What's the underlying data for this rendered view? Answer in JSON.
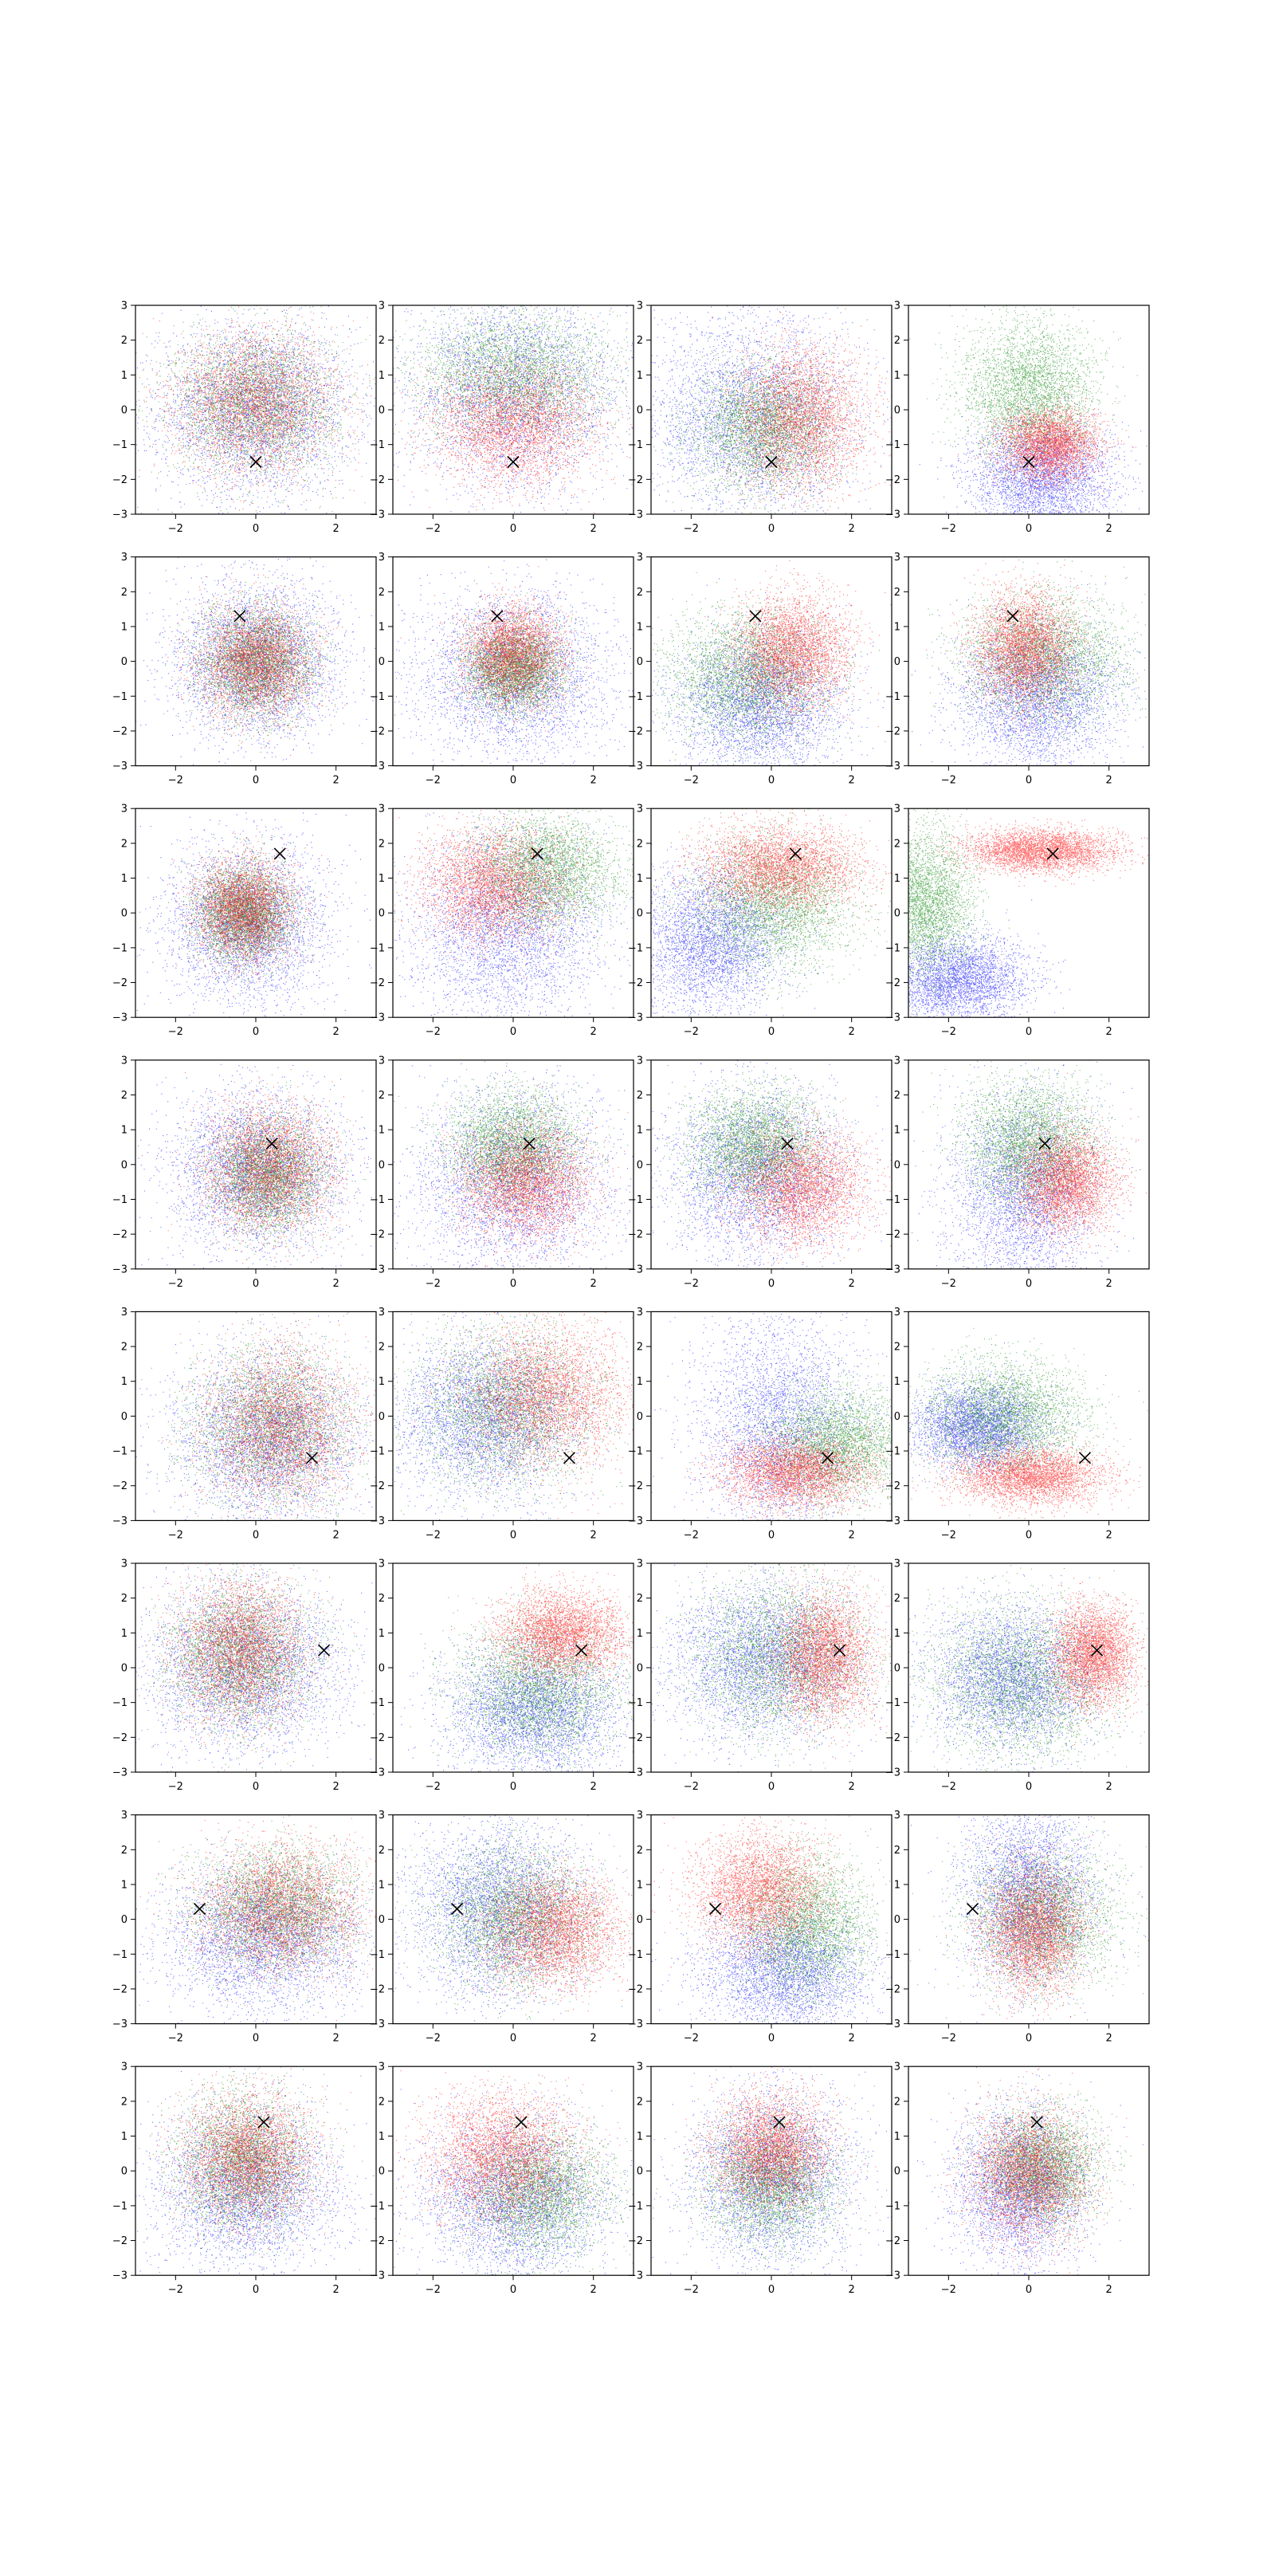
{
  "figure": {
    "rows": 8,
    "cols": 4,
    "colors": {
      "red": "#ff0000",
      "green": "#008000",
      "blue": "#0000ff",
      "marker": "#000000"
    }
  },
  "chart_data": {
    "type": "scatter",
    "xlim": [
      -3,
      3
    ],
    "ylim": [
      -3,
      3
    ],
    "xticks": [
      "−2",
      "0",
      "2"
    ],
    "yticks": [
      "−3",
      "−2",
      "−1",
      "0",
      "1",
      "2",
      "3"
    ],
    "grid": false,
    "series_colors": [
      "blue",
      "green",
      "red"
    ],
    "rows": [
      {
        "marker": [
          0.0,
          -1.5
        ],
        "panels": [
          {
            "blue": [
              0,
              0,
              1.2,
              1.2
            ],
            "green": [
              0,
              0.2,
              1.0,
              1.0
            ],
            "red": [
              0,
              0.2,
              1.0,
              1.0
            ]
          },
          {
            "blue": [
              0,
              0.5,
              1.3,
              1.4
            ],
            "green": [
              0,
              1.0,
              1.2,
              0.9
            ],
            "red": [
              0,
              -0.4,
              1.0,
              0.9
            ]
          },
          {
            "blue": [
              -0.5,
              -0.2,
              1.3,
              1.4
            ],
            "green": [
              -0.2,
              -0.5,
              0.9,
              0.9
            ],
            "red": [
              0.7,
              -0.2,
              0.8,
              1.0
            ]
          },
          {
            "blue": [
              0.3,
              -2.0,
              0.9,
              0.8
            ],
            "green": [
              0.0,
              0.5,
              0.8,
              1.0
            ],
            "red": [
              0.5,
              -1.0,
              0.6,
              0.5
            ]
          }
        ]
      },
      {
        "marker": [
          -0.4,
          1.3
        ],
        "panels": [
          {
            "blue": [
              0,
              0,
              1.0,
              1.1
            ],
            "green": [
              0,
              0,
              0.7,
              0.8
            ],
            "red": [
              0,
              0,
              0.7,
              0.8
            ]
          },
          {
            "blue": [
              0,
              -0.4,
              1.2,
              1.2
            ],
            "green": [
              0,
              -0.2,
              0.6,
              0.6
            ],
            "red": [
              0,
              0.2,
              0.6,
              0.7
            ]
          },
          {
            "blue": [
              -0.3,
              -1.2,
              1.0,
              1.0
            ],
            "green": [
              -0.6,
              -0.4,
              1.0,
              0.9
            ],
            "red": [
              0.5,
              0.3,
              0.7,
              0.8
            ]
          },
          {
            "blue": [
              0.2,
              -1.0,
              1.0,
              1.0
            ],
            "green": [
              0.4,
              0.1,
              1.0,
              0.9
            ],
            "red": [
              -0.1,
              0.4,
              0.6,
              0.8
            ]
          }
        ]
      },
      {
        "marker": [
          0.6,
          1.7
        ],
        "panels": [
          {
            "blue": [
              -0.2,
              -0.3,
              1.0,
              1.1
            ],
            "green": [
              -0.3,
              0.0,
              0.6,
              0.7
            ],
            "red": [
              -0.3,
              0.1,
              0.6,
              0.7
            ]
          },
          {
            "blue": [
              -0.2,
              -0.4,
              1.2,
              1.3
            ],
            "green": [
              0.8,
              1.2,
              0.9,
              0.8
            ],
            "red": [
              -0.5,
              0.8,
              0.9,
              0.8
            ]
          },
          {
            "blue": [
              -1.5,
              -0.8,
              0.9,
              1.0
            ],
            "green": [
              0.0,
              0.2,
              1.0,
              0.9
            ],
            "red": [
              0.2,
              1.3,
              1.0,
              0.6
            ]
          },
          {
            "blue": [
              -1.8,
              -1.9,
              0.9,
              0.6
            ],
            "green": [
              -2.6,
              0.3,
              0.6,
              1.0
            ],
            "red": [
              0.3,
              1.8,
              0.9,
              0.3
            ]
          }
        ]
      },
      {
        "marker": [
          0.4,
          0.6
        ],
        "panels": [
          {
            "blue": [
              0,
              -0.2,
              1.1,
              1.1
            ],
            "green": [
              0.3,
              -0.3,
              0.7,
              0.8
            ],
            "red": [
              0.3,
              -0.1,
              0.8,
              0.9
            ]
          },
          {
            "blue": [
              0,
              -0.5,
              1.2,
              1.3
            ],
            "green": [
              0,
              0.5,
              0.8,
              0.8
            ],
            "red": [
              0.3,
              -0.5,
              0.8,
              0.8
            ]
          },
          {
            "blue": [
              -0.4,
              -0.3,
              1.1,
              1.2
            ],
            "green": [
              -0.4,
              0.5,
              0.8,
              0.8
            ],
            "red": [
              0.7,
              -0.6,
              0.8,
              0.8
            ]
          },
          {
            "blue": [
              -0.1,
              -0.8,
              0.9,
              1.4
            ],
            "green": [
              0.0,
              0.6,
              0.8,
              0.9
            ],
            "red": [
              0.9,
              -0.5,
              0.6,
              0.7
            ]
          }
        ]
      },
      {
        "marker": [
          1.4,
          -1.2
        ],
        "panels": [
          {
            "blue": [
              0.3,
              -0.6,
              1.1,
              1.2
            ],
            "green": [
              0.4,
              -0.3,
              1.0,
              1.1
            ],
            "red": [
              0.6,
              -0.3,
              0.9,
              1.1
            ]
          },
          {
            "blue": [
              -0.7,
              0.0,
              1.1,
              1.1
            ],
            "green": [
              -0.2,
              0.2,
              1.1,
              1.1
            ],
            "red": [
              0.8,
              0.6,
              1.0,
              1.0
            ]
          },
          {
            "blue": [
              0.2,
              -0.3,
              1.0,
              1.6
            ],
            "green": [
              1.6,
              -0.8,
              0.9,
              0.8
            ],
            "red": [
              0.6,
              -1.6,
              0.9,
              0.5
            ]
          },
          {
            "blue": [
              -1.3,
              -0.3,
              0.8,
              0.6
            ],
            "green": [
              -0.6,
              0.0,
              1.0,
              0.8
            ],
            "red": [
              0.0,
              -1.7,
              0.9,
              0.4
            ]
          }
        ]
      },
      {
        "marker": [
          1.7,
          0.5
        ],
        "panels": [
          {
            "blue": [
              -0.3,
              0.0,
              1.2,
              1.2
            ],
            "green": [
              -0.4,
              0.3,
              0.9,
              1.0
            ],
            "red": [
              -0.4,
              0.5,
              0.8,
              1.0
            ]
          },
          {
            "blue": [
              0.5,
              -1.2,
              1.1,
              0.9
            ],
            "green": [
              0.6,
              -0.6,
              1.0,
              1.0
            ],
            "red": [
              1.2,
              1.0,
              0.8,
              0.6
            ]
          },
          {
            "blue": [
              -0.2,
              0.2,
              1.1,
              1.1
            ],
            "green": [
              0.2,
              0.3,
              1.1,
              1.1
            ],
            "red": [
              1.3,
              0.3,
              0.6,
              0.9
            ]
          },
          {
            "blue": [
              -0.4,
              -0.3,
              1.0,
              1.0
            ],
            "green": [
              -0.2,
              -0.4,
              1.1,
              1.1
            ],
            "red": [
              1.6,
              0.4,
              0.5,
              0.7
            ]
          }
        ]
      },
      {
        "marker": [
          -1.4,
          0.3
        ],
        "panels": [
          {
            "blue": [
              0.2,
              -0.5,
              1.2,
              1.0
            ],
            "green": [
              0.5,
              0.3,
              1.0,
              0.9
            ],
            "red": [
              0.6,
              0.3,
              1.0,
              0.9
            ]
          },
          {
            "blue": [
              -0.4,
              0.3,
              1.1,
              1.2
            ],
            "green": [
              0.0,
              0.1,
              1.0,
              1.0
            ],
            "red": [
              1.0,
              -0.3,
              0.8,
              0.8
            ]
          },
          {
            "blue": [
              0.3,
              -1.5,
              1.0,
              0.9
            ],
            "green": [
              0.8,
              -0.2,
              0.8,
              1.0
            ],
            "red": [
              -0.3,
              0.8,
              0.8,
              0.8
            ]
          },
          {
            "blue": [
              0.0,
              0.8,
              0.8,
              1.3
            ],
            "green": [
              0.3,
              0.1,
              0.9,
              1.0
            ],
            "red": [
              0.1,
              -0.3,
              0.6,
              0.9
            ]
          }
        ]
      },
      {
        "marker": [
          0.2,
          1.4
        ],
        "panels": [
          {
            "blue": [
              -0.2,
              -0.5,
              1.1,
              1.1
            ],
            "green": [
              -0.3,
              0.2,
              0.8,
              1.0
            ],
            "red": [
              -0.2,
              0.4,
              0.8,
              0.9
            ]
          },
          {
            "blue": [
              0.0,
              -0.8,
              1.1,
              1.1
            ],
            "green": [
              0.6,
              -0.6,
              0.9,
              0.9
            ],
            "red": [
              -0.3,
              0.4,
              0.9,
              0.9
            ]
          },
          {
            "blue": [
              0.0,
              -0.2,
              1.0,
              1.2
            ],
            "green": [
              0.0,
              -0.3,
              0.8,
              0.9
            ],
            "red": [
              0.0,
              0.6,
              0.7,
              0.8
            ]
          },
          {
            "blue": [
              -0.2,
              -0.5,
              0.8,
              1.1
            ],
            "green": [
              0.3,
              0.1,
              0.7,
              0.8
            ],
            "red": [
              0.0,
              -0.1,
              0.7,
              0.9
            ]
          }
        ]
      }
    ]
  }
}
